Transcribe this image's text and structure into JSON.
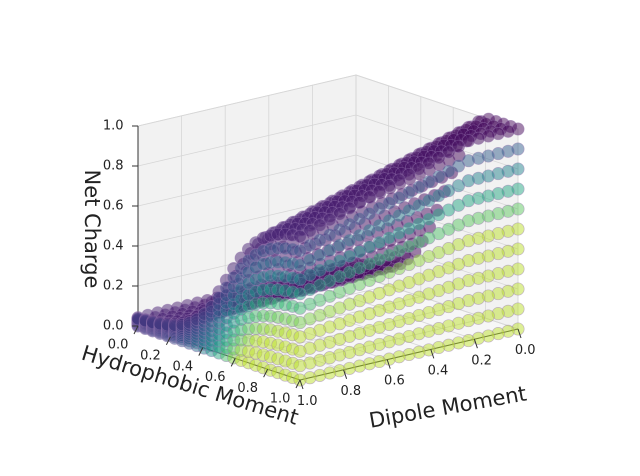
{
  "chart_data": {
    "type": "scatter",
    "projection": "3d",
    "title": "",
    "xlabel": "Dipole Moment",
    "ylabel": "Hydrophobic Moment",
    "zlabel": "Net Charge",
    "xlim": [
      0,
      1
    ],
    "ylim": [
      0,
      1
    ],
    "zlim": [
      0,
      1
    ],
    "xticks": [
      "0.0",
      "0.2",
      "0.4",
      "0.6",
      "0.8",
      "1.0"
    ],
    "yticks": [
      "0.0",
      "0.2",
      "0.4",
      "0.6",
      "0.8",
      "1.0"
    ],
    "zticks": [
      "0.0",
      "0.2",
      "0.4",
      "0.6",
      "0.8",
      "1.0"
    ],
    "grid": true,
    "pane_color": "#f2f2f2",
    "colormap": "viridis",
    "marker": "circle",
    "marker_alpha": 0.25,
    "marker_edge_color": "#9a79b3",
    "surface_description_points": [
      {
        "hydrophobic_moment": 0.0,
        "dipole_moment": 1.0,
        "net_charge": 0.0
      },
      {
        "hydrophobic_moment": 0.0,
        "dipole_moment": 0.0,
        "net_charge": 0.0
      },
      {
        "hydrophobic_moment": 1.0,
        "dipole_moment": 1.0,
        "net_charge": 1.0
      },
      {
        "hydrophobic_moment": 1.0,
        "dipole_moment": 0.0,
        "net_charge": 1.0
      }
    ]
  }
}
